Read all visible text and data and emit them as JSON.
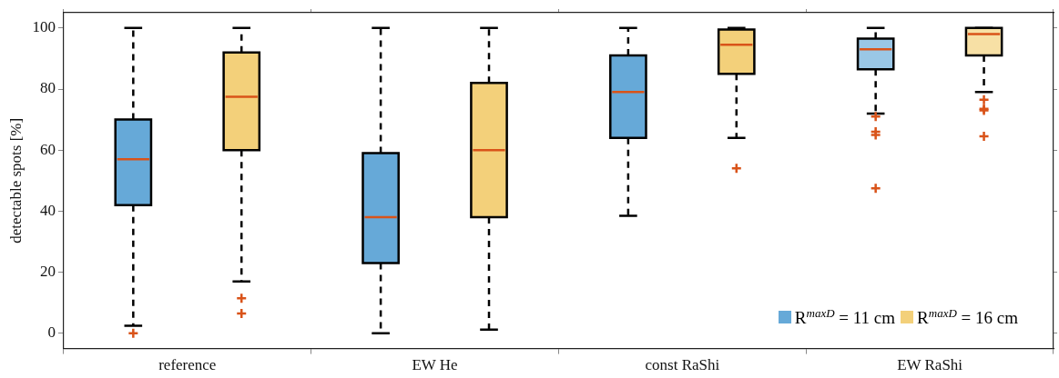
{
  "chart_data": {
    "type": "box",
    "ylabel": "detectable spots [%]",
    "categories": [
      "reference",
      "EW He",
      "const RaShi",
      "EW RaShi"
    ],
    "ylim": [
      -5,
      105
    ],
    "yticks": [
      0,
      20,
      40,
      60,
      80,
      100
    ],
    "legend": "bottom right",
    "series": [
      {
        "name": "R$^{maxD}$ = 11 cm",
        "color": "#66a9d8",
        "colors": [
          "#66a9d8",
          "#66a9d8",
          "#66a9d8",
          "#9ac7e6"
        ],
        "boxes": [
          {
            "low": 2.5,
            "q1": 42,
            "median": 57,
            "q3": 70,
            "high": 100,
            "outliers": [
              0
            ]
          },
          {
            "low": 0,
            "q1": 23,
            "median": 38,
            "q3": 59,
            "high": 100
          },
          {
            "low": 38.5,
            "q1": 64,
            "median": 79,
            "q3": 91,
            "high": 100
          },
          {
            "low": 72,
            "q1": 86.5,
            "median": 93,
            "q3": 96.5,
            "high": 100,
            "outliers": [
              71,
              66,
              65,
              47.5
            ]
          }
        ]
      },
      {
        "name": "R$^{maxD}$ = 16 cm",
        "color": "#f3d07a",
        "colors": [
          "#f3d07a",
          "#f3d07a",
          "#f3d07a",
          "#f7e0a5"
        ],
        "boxes": [
          {
            "low": 17,
            "q1": 60,
            "median": 77.5,
            "q3": 92,
            "high": 100,
            "outliers": [
              11.5,
              6.5
            ]
          },
          {
            "low": 1.2,
            "q1": 38,
            "median": 60,
            "q3": 82,
            "high": 100
          },
          {
            "low": 64,
            "q1": 85,
            "median": 94.5,
            "q3": 99.5,
            "high": 100,
            "outliers": [
              54
            ]
          },
          {
            "low": 79,
            "q1": 91,
            "median": 98,
            "q3": 100,
            "high": 100,
            "outliers": [
              76.5,
              73.5,
              73,
              64.5
            ]
          }
        ]
      }
    ]
  }
}
